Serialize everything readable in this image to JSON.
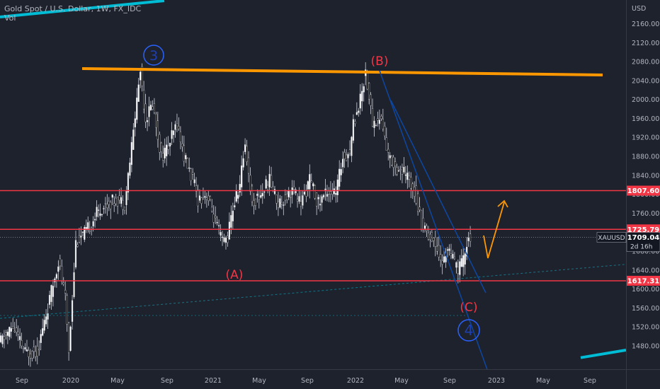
{
  "header": {
    "symbol_line": "Gold Spot / U.S. Dollar, 1W, FX_IDC",
    "volume_label": "Vol"
  },
  "axis": {
    "currency": "USD",
    "y_ticks": [
      1480,
      1520,
      1560,
      1600,
      1640,
      1680,
      1720,
      1760,
      1800,
      1840,
      1880,
      1920,
      1960,
      2000,
      2040,
      2080,
      2120,
      2160
    ],
    "y_tick_labels": [
      "1480.00",
      "1520.00",
      "1560.00",
      "1600.00",
      "1640.00",
      "1680.00",
      "1720.00",
      "1760.00",
      "1800.00",
      "1840.00",
      "1880.00",
      "1920.00",
      "1960.00",
      "2000.00",
      "2040.00",
      "2080.00",
      "2120.00",
      "2160.00"
    ],
    "x_labels": [
      "Sep",
      "2020",
      "May",
      "Sep",
      "2021",
      "May",
      "Sep",
      "2022",
      "May",
      "Sep",
      "2023",
      "May",
      "Sep"
    ]
  },
  "price_tags": [
    {
      "label": "1807.60",
      "value": 1807.6,
      "color": "#f23645"
    },
    {
      "label": "1725.79",
      "value": 1725.79,
      "color": "#f23645"
    },
    {
      "label": "1617.31",
      "value": 1617.31,
      "color": "#f23645"
    }
  ],
  "current_price": {
    "symbol": "XAUUSD",
    "label": "1709.04",
    "countdown": "2d 16h",
    "value": 1709.04
  },
  "wave_labels": {
    "w3": "3",
    "wB": "(B)",
    "wA": "(A)",
    "wC": "(C)",
    "w4": "4"
  },
  "colors": {
    "background": "#1e222d",
    "up": "#ffffff",
    "down": "#000000",
    "support": "#f23645",
    "resistance": "#ff9800",
    "channel": "#0d47a1",
    "wave_blue": "#2962ff",
    "wave_red": "#f23645",
    "trend": "#00bcd4"
  },
  "chart_data": {
    "type": "candlestick",
    "title": "Gold Spot / U.S. Dollar, 1W, FX_IDC",
    "ylim": [
      1448,
      2184
    ],
    "y_unit": "USD",
    "horizontal_levels": [
      1807.6,
      1725.79,
      1617.31
    ],
    "last_price": 1709.04,
    "path": [
      [
        0,
        1485
      ],
      [
        8,
        1520
      ],
      [
        15,
        1465
      ],
      [
        22,
        1470
      ],
      [
        28,
        1560
      ],
      [
        34,
        1660
      ],
      [
        38,
        1580
      ],
      [
        40,
        1470
      ],
      [
        44,
        1700
      ],
      [
        50,
        1720
      ],
      [
        56,
        1760
      ],
      [
        62,
        1780
      ],
      [
        68,
        1790
      ],
      [
        72,
        1780
      ],
      [
        76,
        1900
      ],
      [
        79,
        2000
      ],
      [
        81,
        2063
      ],
      [
        84,
        1960
      ],
      [
        88,
        1990
      ],
      [
        93,
        1880
      ],
      [
        97,
        1900
      ],
      [
        102,
        1950
      ],
      [
        106,
        1880
      ],
      [
        111,
        1830
      ],
      [
        114,
        1790
      ],
      [
        119,
        1800
      ],
      [
        124,
        1740
      ],
      [
        128,
        1700
      ],
      [
        131,
        1710
      ],
      [
        134,
        1770
      ],
      [
        138,
        1820
      ],
      [
        141,
        1910
      ],
      [
        145,
        1780
      ],
      [
        150,
        1800
      ],
      [
        155,
        1830
      ],
      [
        160,
        1780
      ],
      [
        163,
        1790
      ],
      [
        168,
        1810
      ],
      [
        173,
        1780
      ],
      [
        178,
        1830
      ],
      [
        183,
        1780
      ],
      [
        188,
        1810
      ],
      [
        193,
        1800
      ],
      [
        197,
        1880
      ],
      [
        201,
        1890
      ],
      [
        203,
        1950
      ],
      [
        207,
        2000
      ],
      [
        210,
        2060
      ],
      [
        214,
        1950
      ],
      [
        219,
        1960
      ],
      [
        223,
        1880
      ],
      [
        227,
        1860
      ],
      [
        233,
        1840
      ],
      [
        238,
        1810
      ],
      [
        242,
        1740
      ],
      [
        247,
        1710
      ],
      [
        251,
        1690
      ],
      [
        254,
        1650
      ],
      [
        257,
        1690
      ],
      [
        260,
        1660
      ],
      [
        263,
        1640
      ],
      [
        266,
        1660
      ],
      [
        269,
        1710
      ]
    ]
  }
}
